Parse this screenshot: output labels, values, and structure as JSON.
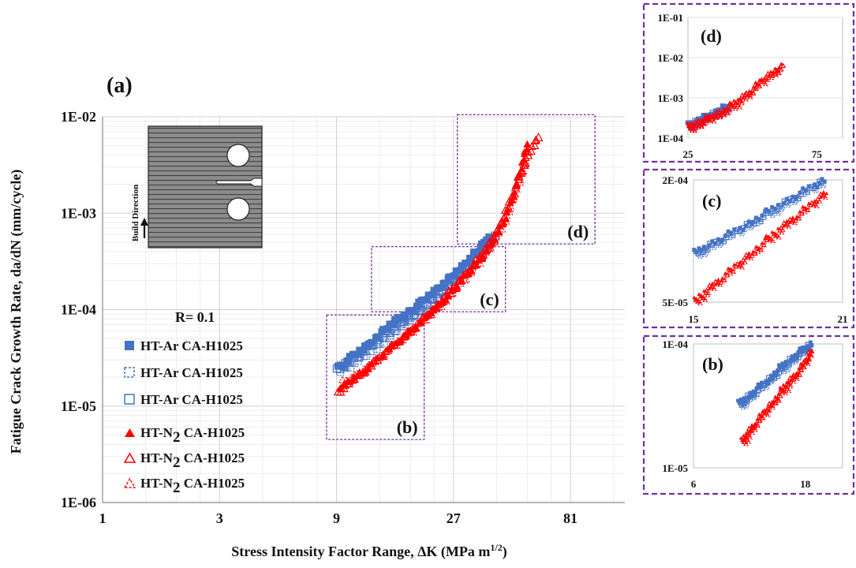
{
  "chart_data": [
    {
      "panel": "(a)",
      "type": "scatter",
      "title": "",
      "xlabel": "Stress Intensity Factor Range, ΔK (MPa m",
      "xlabel_sup": "1/2",
      "xlabel_close": ")",
      "ylabel": "Fatigue Crack Growth Rate, da/dN (mm/cycle)",
      "x_scale": "log3",
      "y_scale": "log",
      "xlim": [
        1,
        135
      ],
      "ylim": [
        1e-06,
        0.01
      ],
      "xticks": [
        1,
        3,
        9,
        27,
        81
      ],
      "xtick_labels": [
        "1",
        "3",
        "9",
        "27",
        "81"
      ],
      "yticks": [
        1e-06,
        1e-05,
        0.0001,
        0.001,
        0.01
      ],
      "ytick_labels": [
        "1E-06",
        "1E-05",
        "1E-04",
        "1E-03",
        "1E-02"
      ],
      "grid": true,
      "annotation_ratio": "R= 0.1",
      "inset_label": "Build Direction",
      "zoom_boxes": [
        {
          "label": "(b)",
          "x": [
            8.2,
            20.5
          ],
          "y": [
            4.5e-06,
            8.8e-05
          ]
        },
        {
          "label": "(c)",
          "x": [
            12.5,
            44
          ],
          "y": [
            9.5e-05,
            0.00045
          ]
        },
        {
          "label": "(d)",
          "x": [
            28,
            102
          ],
          "y": [
            0.00048,
            0.0105
          ]
        }
      ],
      "legend_position": "left",
      "series": [
        {
          "name": "HT-Ar CA-H1025",
          "color": "#4472c4",
          "marker": "square-filled",
          "x": [
            9.2,
            10.5,
            12,
            14,
            16,
            18,
            20,
            23,
            26,
            30,
            33,
            36,
            38
          ],
          "y": [
            2.5e-05,
            3.3e-05,
            4.2e-05,
            6e-05,
            8e-05,
            9.4e-05,
            0.00012,
            0.00016,
            0.00021,
            0.00029,
            0.00038,
            0.00048,
            0.00056
          ]
        },
        {
          "name": "HT-Ar CA-H1025",
          "color": "#4472c4",
          "marker": "square-dashed",
          "x": [
            9.4,
            11,
            13,
            15,
            17,
            19,
            22,
            25,
            28,
            32,
            36,
            39
          ],
          "y": [
            2.3e-05,
            3e-05,
            4e-05,
            5.5e-05,
            7.2e-05,
            9e-05,
            0.00012,
            0.00016,
            0.00022,
            0.0003,
            0.00042,
            0.00055
          ]
        },
        {
          "name": "HT-Ar CA-H1025",
          "color": "#4472c4",
          "marker": "square-open",
          "x": [
            9.1,
            10,
            11.5,
            13.5,
            15.5,
            18,
            21,
            24,
            27,
            31,
            35,
            40
          ],
          "y": [
            2.4e-05,
            2.8e-05,
            3.6e-05,
            5e-05,
            6.5e-05,
            8.5e-05,
            0.00011,
            0.00015,
            0.0002,
            0.00028,
            0.00039,
            0.00058
          ]
        },
        {
          "name": "HT-N",
          "name_sub": "2",
          "name_rest": " CA-H1025",
          "color": "#ff0000",
          "marker": "triangle-filled",
          "x": [
            9.4,
            10.5,
            12,
            14,
            16.5,
            19,
            22,
            25,
            28,
            32,
            36,
            40,
            44,
            48,
            51,
            54
          ],
          "y": [
            1.6e-05,
            1.9e-05,
            2.5e-05,
            3.6e-05,
            5e-05,
            6.8e-05,
            9.5e-05,
            0.00013,
            0.00018,
            0.00026,
            0.00037,
            0.00055,
            0.0009,
            0.0017,
            0.003,
            0.0052
          ]
        },
        {
          "name": "HT-N",
          "name_sub": "2",
          "name_rest": " CA-H1025",
          "color": "#ff0000",
          "marker": "triangle-open",
          "x": [
            9.2,
            10,
            11.5,
            13.5,
            16,
            18.5,
            21,
            24,
            27,
            31,
            35,
            39,
            43,
            47,
            51,
            55,
            60
          ],
          "y": [
            1.4e-05,
            1.7e-05,
            2.2e-05,
            3.2e-05,
            4.6e-05,
            6.3e-05,
            8.8e-05,
            0.00012,
            0.00017,
            0.00025,
            0.00036,
            0.00054,
            0.00088,
            0.0015,
            0.0026,
            0.0043,
            0.0061
          ]
        },
        {
          "name": "HT-N",
          "name_sub": "2",
          "name_rest": " CA-H1025",
          "color": "#ff0000",
          "marker": "triangle-dashed",
          "x": [
            9.6,
            11,
            12.5,
            15,
            17.5,
            20,
            23,
            26,
            29,
            33,
            37,
            41,
            45,
            49,
            53
          ],
          "y": [
            1.8e-05,
            2.1e-05,
            2.7e-05,
            4e-05,
            5.5e-05,
            7.4e-05,
            0.0001,
            0.00014,
            0.00019,
            0.00028,
            0.0004,
            0.0006,
            0.001,
            0.0019,
            0.0034
          ]
        }
      ]
    },
    {
      "panel": "(d)",
      "type": "scatter",
      "xlim": [
        25,
        85
      ],
      "ylim": [
        0.0001,
        0.1
      ],
      "xtick_labels": [
        "25",
        "75"
      ],
      "xticks": [
        25,
        75
      ],
      "ytick_labels": [
        "1E-04",
        "1E-03",
        "1E-02",
        "1E-01"
      ],
      "yticks": [
        0.0001,
        0.001,
        0.01,
        0.1
      ],
      "series": [
        {
          "color": "#4472c4",
          "x": [
            25.5,
            28,
            30,
            33,
            36,
            39,
            41
          ],
          "y": [
            0.00019,
            0.00023,
            0.00027,
            0.00033,
            0.00041,
            0.0005,
            0.00058
          ]
        },
        {
          "color": "#ff0000",
          "x": [
            25.5,
            28,
            31,
            34,
            38,
            42,
            46,
            50,
            54,
            58,
            62
          ],
          "y": [
            0.00018,
            0.00021,
            0.00026,
            0.00032,
            0.00042,
            0.0006,
            0.0009,
            0.0015,
            0.0026,
            0.0042,
            0.0058
          ]
        }
      ]
    },
    {
      "panel": "(c)",
      "type": "scatter",
      "xlim": [
        15,
        21
      ],
      "ylim": [
        5e-05,
        0.0002
      ],
      "xtick_labels": [
        "15",
        "21"
      ],
      "xticks": [
        15,
        21
      ],
      "ytick_labels": [
        "5E-05",
        "2E-04"
      ],
      "yticks": [
        5e-05,
        0.0002
      ],
      "series": [
        {
          "color": "#4472c4",
          "x": [
            15.1,
            15.6,
            16.2,
            16.8,
            17.4,
            18,
            18.6,
            19.2,
            19.8,
            20.3
          ],
          "y": [
            8.6e-05,
            9.3e-05,
            0.000102,
            0.000112,
            0.000123,
            0.000136,
            0.00015,
            0.000166,
            0.000183,
            0.000198
          ]
        },
        {
          "color": "#ff0000",
          "x": [
            15.1,
            15.6,
            16.2,
            16.8,
            17.4,
            18,
            18.6,
            19.2,
            19.8,
            20.4
          ],
          "y": [
            5e-05,
            5.7e-05,
            6.6e-05,
            7.6e-05,
            8.8e-05,
            0.000101,
            0.000116,
            0.000133,
            0.000152,
            0.000175
          ]
        }
      ]
    },
    {
      "panel": "(b)",
      "type": "scatter",
      "xlim": [
        6,
        22
      ],
      "ylim": [
        1e-05,
        0.0001
      ],
      "xtick_labels": [
        "6",
        "18"
      ],
      "xticks": [
        6,
        18
      ],
      "ytick_labels": [
        "1E-05",
        "1E-04"
      ],
      "yticks": [
        1e-05,
        0.0001
      ],
      "series": [
        {
          "color": "#4472c4",
          "x": [
            11,
            11.8,
            12.7,
            13.6,
            14.5,
            15.4,
            16.3,
            17.2,
            18,
            18.6
          ],
          "y": [
            3.2e-05,
            3.6e-05,
            4.1e-05,
            4.7e-05,
            5.4e-05,
            6.2e-05,
            7.1e-05,
            8.1e-05,
            9e-05,
            9.8e-05
          ]
        },
        {
          "color": "#ff0000",
          "x": [
            11.3,
            12,
            12.8,
            13.7,
            14.6,
            15.5,
            16.4,
            17.3,
            18.1,
            18.7
          ],
          "y": [
            1.6e-05,
            1.9e-05,
            2.3e-05,
            2.8e-05,
            3.4e-05,
            4.1e-05,
            4.9e-05,
            5.9e-05,
            7.2e-05,
            8.9e-05
          ]
        }
      ]
    }
  ]
}
